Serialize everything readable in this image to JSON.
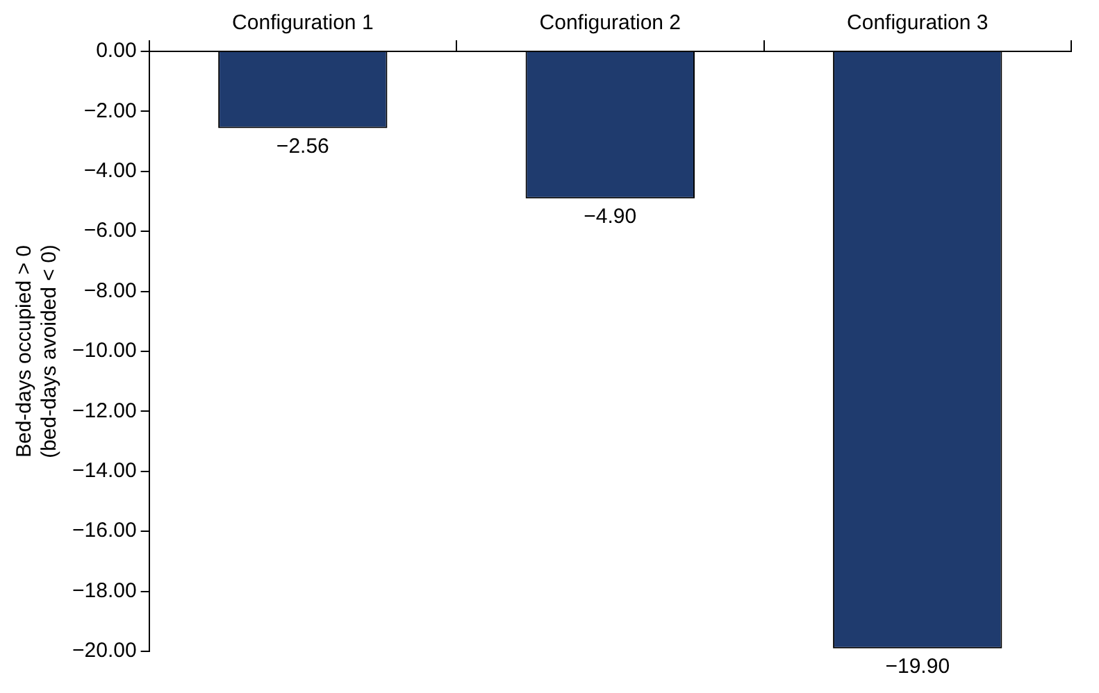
{
  "chart_data": {
    "type": "bar",
    "ylabel": "Bed-days occupied > 0\n(bed-days avoided < 0)",
    "categories": [
      "Configuration 1",
      "Configuration 2",
      "Configuration 3"
    ],
    "values": [
      -2.56,
      -4.9,
      -19.9
    ],
    "color": "#1f3b6e",
    "value_labels": [
      "−2.56",
      "−4.90",
      "−19.90"
    ],
    "ylim": [
      -20,
      0
    ],
    "yticks": [
      {
        "value": 0,
        "label": "0.00"
      },
      {
        "value": -2,
        "label": "−2.00"
      },
      {
        "value": -4,
        "label": "−4.00"
      },
      {
        "value": -6,
        "label": "−6.00"
      },
      {
        "value": -8,
        "label": "−8.00"
      },
      {
        "value": -10,
        "label": "−10.00"
      },
      {
        "value": -12,
        "label": "−12.00"
      },
      {
        "value": -14,
        "label": "−14.00"
      },
      {
        "value": -16,
        "label": "−16.00"
      },
      {
        "value": -18,
        "label": "−18.00"
      },
      {
        "value": -20,
        "label": "−20.00"
      }
    ],
    "grid": false,
    "legend": false
  }
}
